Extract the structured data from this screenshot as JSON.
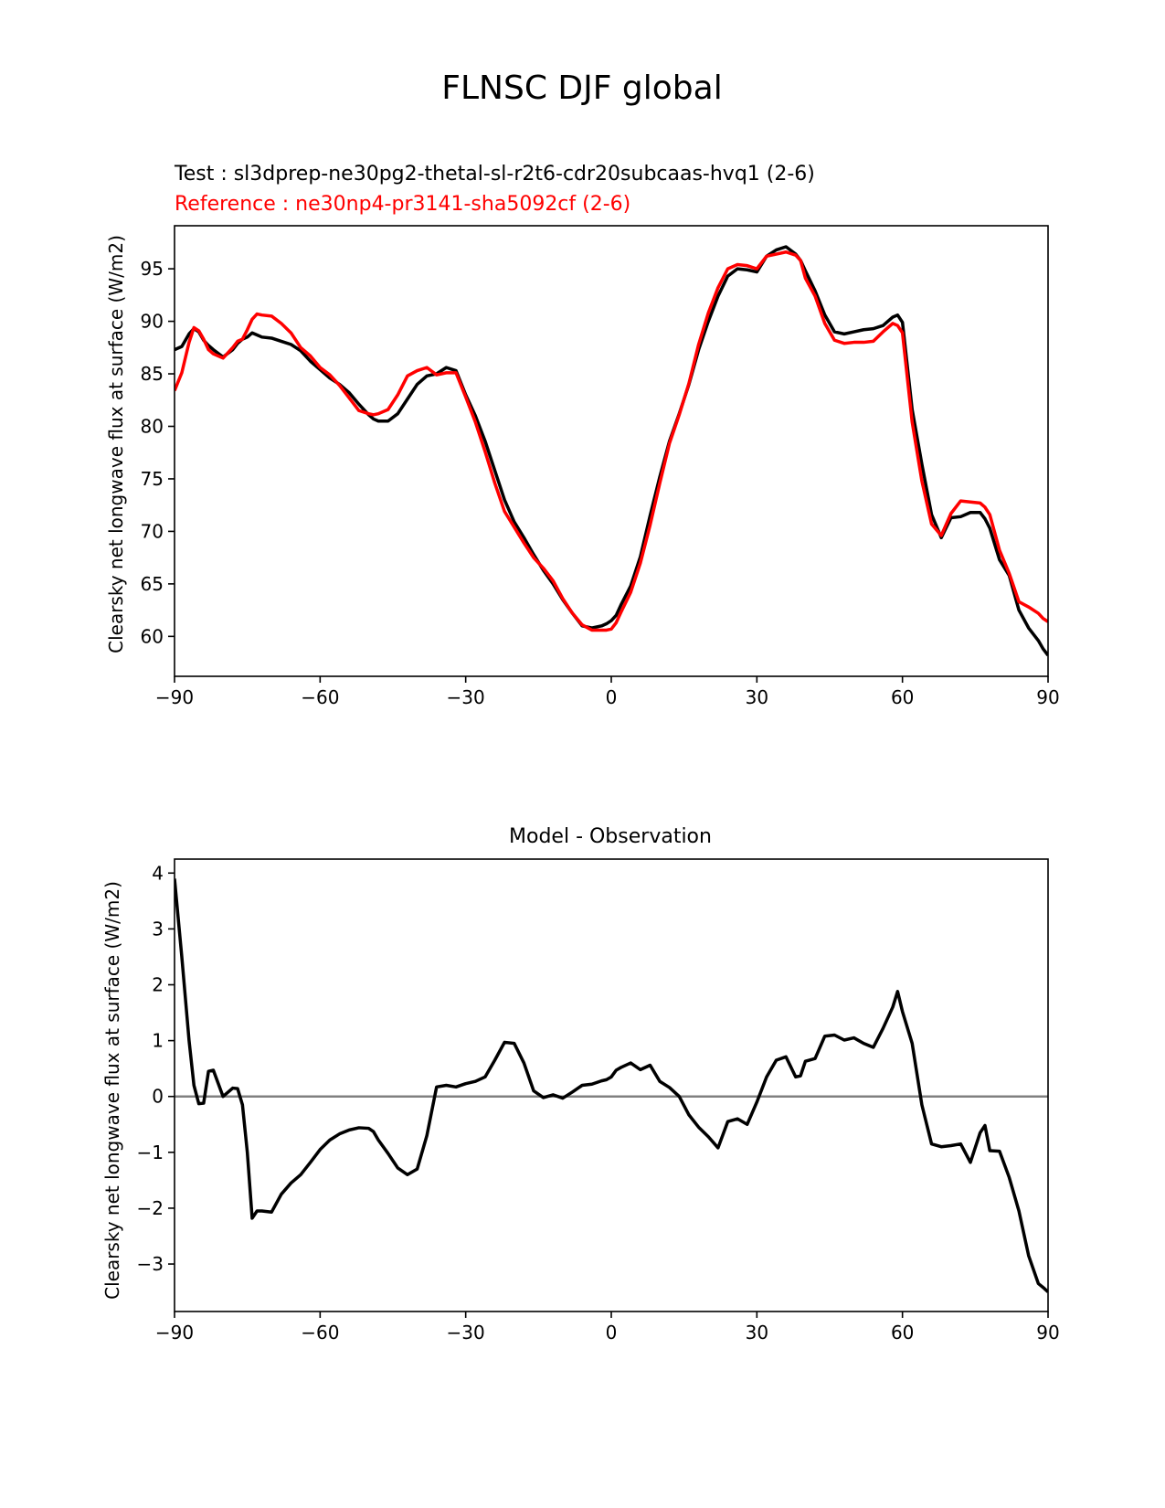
{
  "figure": {
    "title": "FLNSC DJF global"
  },
  "colors": {
    "test": "#000000",
    "reference": "#ff0000",
    "zero_line": "#808080",
    "axes": "#000000"
  },
  "chart_data": [
    {
      "type": "line",
      "title": "",
      "test_label": "Test : sl3dprep-ne30pg2-thetal-sl-r2t6-cdr20subcaas-hvq1 (2-6)",
      "reference_label": "Reference : ne30np4-pr3141-sha5092cf (2-6)",
      "xlabel": "",
      "ylabel": "Clearsky net longwave flux at surface (W/m2)",
      "xlim": [
        -90,
        90
      ],
      "ylim": [
        56.2,
        99.1
      ],
      "xticks": [
        -90,
        -60,
        -30,
        0,
        30,
        60,
        90
      ],
      "xtick_labels": [
        "−90",
        "−60",
        "−30",
        "0",
        "30",
        "60",
        "90"
      ],
      "yticks": [
        60,
        65,
        70,
        75,
        80,
        85,
        90,
        95
      ],
      "ytick_labels": [
        "60",
        "65",
        "70",
        "75",
        "80",
        "85",
        "90",
        "95"
      ],
      "series": [
        {
          "key": "test",
          "color": "#000000",
          "x": [
            -90,
            -88.5,
            -87,
            -86,
            -85,
            -84,
            -83,
            -82,
            -80,
            -78,
            -77,
            -76,
            -75,
            -74,
            -73,
            -72,
            -70,
            -68,
            -66,
            -64,
            -62,
            -60,
            -58,
            -56,
            -54,
            -52,
            -50,
            -49,
            -48,
            -46,
            -44,
            -42,
            -40,
            -38,
            -36,
            -34,
            -32,
            -30,
            -28,
            -26,
            -24,
            -22,
            -20,
            -18,
            -16,
            -14,
            -12,
            -10,
            -8,
            -6,
            -4,
            -2,
            -1,
            0,
            1,
            2,
            4,
            6,
            8,
            10,
            12,
            14,
            16,
            18,
            20,
            22,
            24,
            26,
            28,
            30,
            32,
            34,
            36,
            38,
            39,
            40,
            42,
            44,
            46,
            48,
            50,
            52,
            54,
            56,
            58,
            59,
            60,
            62,
            64,
            66,
            68,
            70,
            72,
            74,
            76,
            77,
            78,
            80,
            82,
            84,
            86,
            88,
            89,
            90
          ],
          "y": [
            87.3,
            87.6,
            88.8,
            89.3,
            89.0,
            88.2,
            87.7,
            87.3,
            86.6,
            87.3,
            87.9,
            88.3,
            88.5,
            88.9,
            88.7,
            88.5,
            88.4,
            88.1,
            87.8,
            87.2,
            86.2,
            85.4,
            84.6,
            84.0,
            83.2,
            82.1,
            81.1,
            80.7,
            80.5,
            80.5,
            81.2,
            82.6,
            84.0,
            84.8,
            85.0,
            85.6,
            85.3,
            83.0,
            81.0,
            78.6,
            75.8,
            73.0,
            70.9,
            69.4,
            67.8,
            66.3,
            65.0,
            63.5,
            62.2,
            61.0,
            60.8,
            61.0,
            61.2,
            61.5,
            62.0,
            63.0,
            64.8,
            67.6,
            71.5,
            75.2,
            78.6,
            81.2,
            84.0,
            87.3,
            90.0,
            92.4,
            94.3,
            95.0,
            94.9,
            94.7,
            96.2,
            96.8,
            97.1,
            96.4,
            95.8,
            94.8,
            92.9,
            90.6,
            89.0,
            88.8,
            89.0,
            89.2,
            89.3,
            89.6,
            90.4,
            90.6,
            89.9,
            81.6,
            76.4,
            71.6,
            69.4,
            71.3,
            71.4,
            71.8,
            71.8,
            71.2,
            70.3,
            67.3,
            65.8,
            62.5,
            60.8,
            59.6,
            58.8,
            58.2
          ]
        },
        {
          "key": "reference",
          "color": "#ff0000",
          "x": [
            -90,
            -88.5,
            -87,
            -86,
            -85,
            -84,
            -83,
            -82,
            -80,
            -78,
            -77,
            -76,
            -75,
            -74,
            -73,
            -72,
            -70,
            -68,
            -66,
            -64,
            -62,
            -60,
            -58,
            -56,
            -54,
            -52,
            -50,
            -49,
            -48,
            -46,
            -44,
            -42,
            -40,
            -38,
            -36,
            -34,
            -32,
            -30,
            -28,
            -26,
            -24,
            -22,
            -20,
            -18,
            -16,
            -14,
            -12,
            -10,
            -8,
            -6,
            -4,
            -2,
            -1,
            0,
            1,
            2,
            4,
            6,
            8,
            10,
            12,
            14,
            16,
            18,
            20,
            22,
            24,
            26,
            28,
            30,
            32,
            34,
            36,
            38,
            39,
            40,
            42,
            44,
            46,
            48,
            50,
            52,
            54,
            56,
            58,
            59,
            60,
            62,
            64,
            66,
            68,
            70,
            72,
            74,
            76,
            77,
            78,
            80,
            82,
            84,
            86,
            88,
            89,
            90
          ],
          "y": [
            83.4,
            85.1,
            88.0,
            89.4,
            89.1,
            88.3,
            87.3,
            86.9,
            86.5,
            87.5,
            88.1,
            88.3,
            89.2,
            90.2,
            90.7,
            90.6,
            90.5,
            89.8,
            88.9,
            87.5,
            86.7,
            85.6,
            84.9,
            83.9,
            82.7,
            81.5,
            81.2,
            81.1,
            81.2,
            81.6,
            83.0,
            84.8,
            85.3,
            85.6,
            84.9,
            85.1,
            85.1,
            82.8,
            80.4,
            77.6,
            74.6,
            71.9,
            70.4,
            68.9,
            67.5,
            66.5,
            65.3,
            63.6,
            62.2,
            61.1,
            60.6,
            60.6,
            60.6,
            60.7,
            61.3,
            62.3,
            64.2,
            67.0,
            70.6,
            74.6,
            78.4,
            81.1,
            84.1,
            87.8,
            90.8,
            93.2,
            95.0,
            95.4,
            95.3,
            95.0,
            96.2,
            96.4,
            96.6,
            96.3,
            95.8,
            94.1,
            92.4,
            89.8,
            88.2,
            87.9,
            88.0,
            88.0,
            88.1,
            89.0,
            89.8,
            89.6,
            88.9,
            80.4,
            74.8,
            70.7,
            69.6,
            71.7,
            72.9,
            72.8,
            72.7,
            72.3,
            71.6,
            68.2,
            66.0,
            63.3,
            62.8,
            62.2,
            61.7,
            61.4
          ]
        }
      ]
    },
    {
      "type": "line",
      "title": "Model - Observation",
      "xlabel": "",
      "ylabel": "Clearsky net longwave flux at surface (W/m2)",
      "xlim": [
        -90,
        90
      ],
      "ylim": [
        -3.85,
        4.25
      ],
      "xticks": [
        -90,
        -60,
        -30,
        0,
        30,
        60,
        90
      ],
      "xtick_labels": [
        "−90",
        "−60",
        "−30",
        "0",
        "30",
        "60",
        "90"
      ],
      "yticks": [
        -3,
        -2,
        -1,
        0,
        1,
        2,
        3,
        4
      ],
      "ytick_labels": [
        "−3",
        "−2",
        "−1",
        "0",
        "1",
        "2",
        "3",
        "4"
      ],
      "zero_line": 0,
      "series": [
        {
          "key": "difference",
          "color": "#000000",
          "x": [
            -90,
            -88.5,
            -87,
            -86,
            -85,
            -84,
            -83,
            -82,
            -80,
            -78,
            -77,
            -76,
            -75,
            -74,
            -73,
            -72,
            -70,
            -68,
            -66,
            -64,
            -62,
            -60,
            -58,
            -56,
            -54,
            -52,
            -50,
            -49,
            -48,
            -46,
            -44,
            -42,
            -40,
            -38,
            -36,
            -34,
            -32,
            -30,
            -28,
            -26,
            -24,
            -22,
            -20,
            -18,
            -16,
            -14,
            -12,
            -10,
            -8,
            -6,
            -4,
            -2,
            -1,
            0,
            1,
            2,
            4,
            6,
            8,
            10,
            12,
            14,
            16,
            18,
            20,
            22,
            24,
            26,
            28,
            30,
            32,
            34,
            36,
            38,
            39,
            40,
            42,
            44,
            46,
            48,
            50,
            52,
            54,
            56,
            58,
            59,
            60,
            62,
            64,
            66,
            68,
            70,
            72,
            74,
            76,
            77,
            78,
            80,
            82,
            84,
            86,
            88,
            89,
            90
          ],
          "y": [
            3.9,
            2.5,
            1.0,
            0.2,
            -0.13,
            -0.12,
            0.45,
            0.47,
            0.0,
            0.15,
            0.14,
            -0.15,
            -1.0,
            -2.18,
            -2.05,
            -2.05,
            -2.07,
            -1.75,
            -1.55,
            -1.4,
            -1.18,
            -0.95,
            -0.78,
            -0.67,
            -0.6,
            -0.56,
            -0.57,
            -0.63,
            -0.78,
            -1.02,
            -1.28,
            -1.4,
            -1.3,
            -0.7,
            0.17,
            0.2,
            0.17,
            0.23,
            0.27,
            0.35,
            0.65,
            0.97,
            0.95,
            0.6,
            0.1,
            -0.02,
            0.03,
            -0.03,
            0.08,
            0.2,
            0.22,
            0.28,
            0.3,
            0.35,
            0.47,
            0.52,
            0.6,
            0.48,
            0.56,
            0.27,
            0.16,
            0.0,
            -0.33,
            -0.55,
            -0.72,
            -0.92,
            -0.45,
            -0.4,
            -0.5,
            -0.1,
            0.35,
            0.65,
            0.71,
            0.35,
            0.37,
            0.63,
            0.68,
            1.08,
            1.1,
            1.01,
            1.05,
            0.95,
            0.88,
            1.22,
            1.6,
            1.88,
            1.52,
            0.95,
            -0.15,
            -0.85,
            -0.9,
            -0.88,
            -0.85,
            -1.18,
            -0.65,
            -0.52,
            -0.97,
            -0.98,
            -1.45,
            -2.05,
            -2.85,
            -3.35,
            -3.42,
            -3.5
          ]
        }
      ]
    }
  ]
}
